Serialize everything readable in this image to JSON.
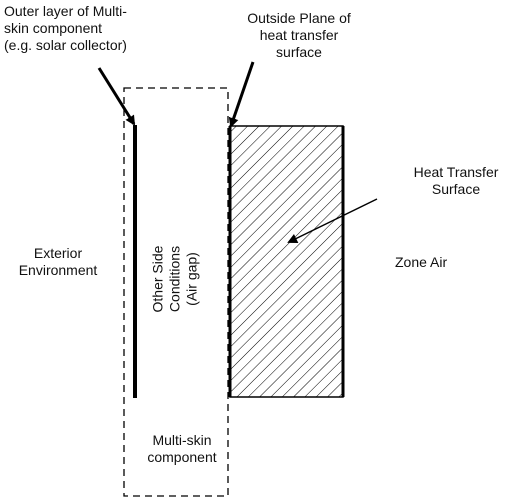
{
  "labels": {
    "outer_layer": [
      "Outer layer of Multi-",
      "skin component",
      "(e.g. solar collector)"
    ],
    "outside_plane": [
      "Outside Plane of",
      "heat transfer",
      "surface"
    ],
    "heat_transfer_surface": [
      "Heat Transfer",
      "Surface"
    ],
    "exterior_environment": [
      "Exterior",
      "Environment"
    ],
    "other_side_conditions": [
      "Other Side",
      "Conditions",
      "(Air gap)"
    ],
    "zone_air": "Zone Air",
    "multi_skin_component": [
      "Multi-skin",
      "component"
    ]
  },
  "colors": {
    "line": "#000000",
    "text": "#111111",
    "background": "#ffffff"
  }
}
